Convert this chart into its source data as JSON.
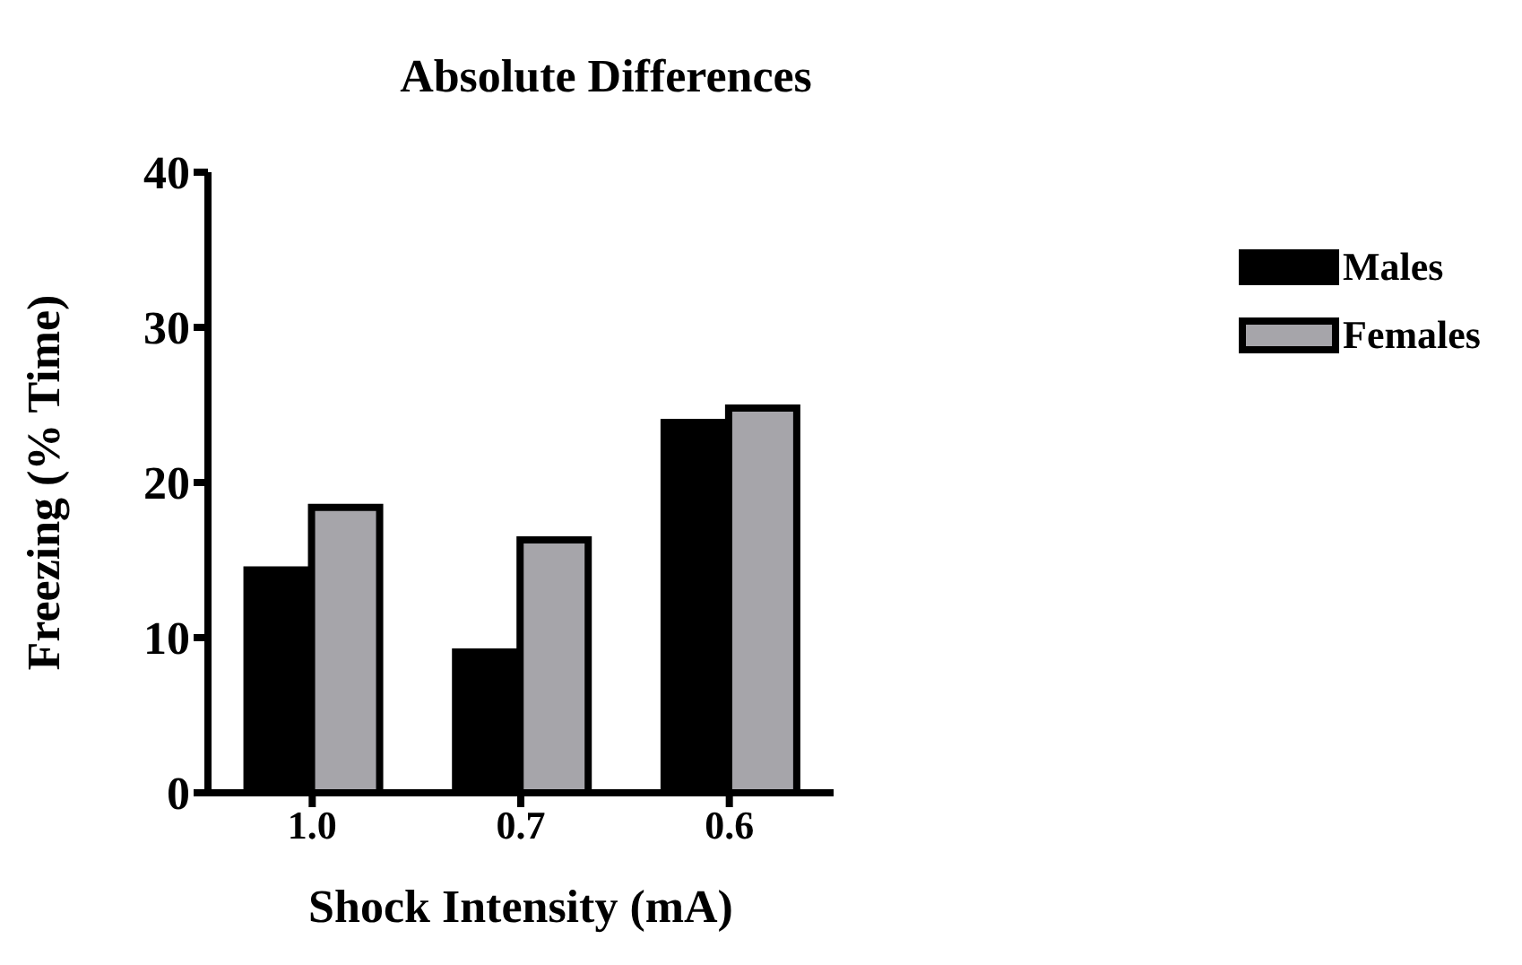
{
  "chart_data": {
    "type": "bar",
    "title": "Absolute Differences",
    "xlabel": "Shock Intensity (mA)",
    "ylabel": "Freezing (% Time)",
    "categories": [
      "1.0",
      "0.7",
      "0.6"
    ],
    "series": [
      {
        "name": "Males",
        "color": "#000000",
        "values": [
          14.6,
          9.3,
          24.1
        ]
      },
      {
        "name": "Females",
        "color": "#a6a5aa",
        "values": [
          18.4,
          16.3,
          24.8
        ]
      }
    ],
    "ylim": [
      0,
      40
    ],
    "yticks": [
      0,
      10,
      20,
      30,
      40
    ],
    "legend": "top right"
  }
}
